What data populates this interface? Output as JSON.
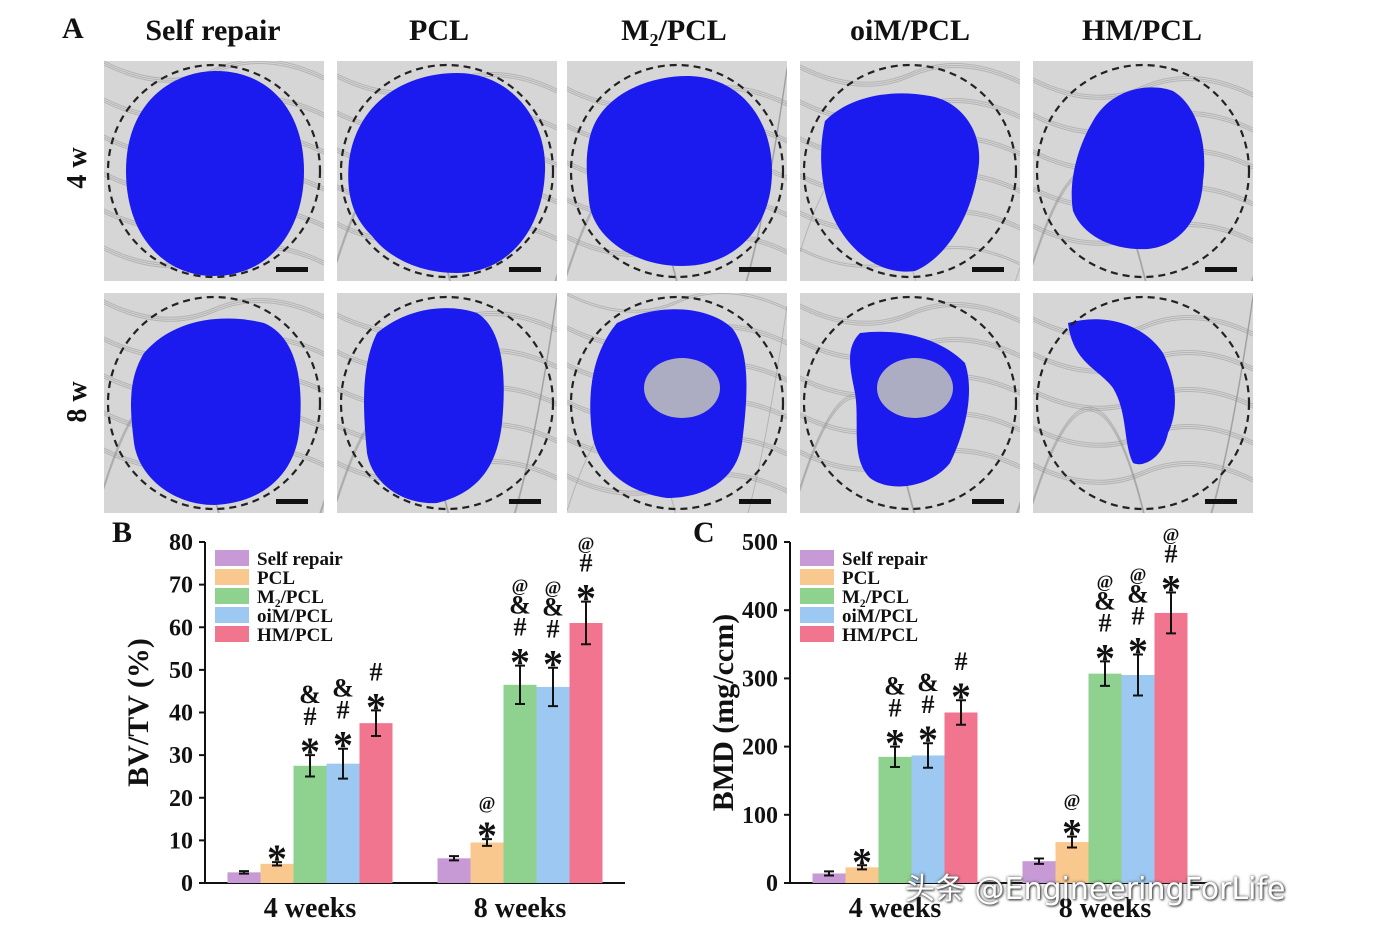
{
  "panel_a": {
    "letter": "A",
    "columns": [
      "Self repair",
      "PCL",
      "M₂/PCL",
      "oiM/PCL",
      "HM/PCL"
    ],
    "rows": [
      "4 w",
      "8 w"
    ],
    "colors": {
      "new_bone": "#1b1bf0",
      "background": "#d6d6d6"
    }
  },
  "watermark": "头条 @EngineeringForLife",
  "chart_data": [
    {
      "panel": "B",
      "type": "bar",
      "ylabel": "BV/TV (%)",
      "xlabel": "",
      "ylim": [
        0,
        80
      ],
      "yticks": [
        0,
        10,
        20,
        30,
        40,
        50,
        60,
        70,
        80
      ],
      "categories": [
        "4 weeks",
        "8 weeks"
      ],
      "legend_position": "top-left",
      "series": [
        {
          "name": "Self repair",
          "color": "#c79ad6",
          "values": [
            2.5,
            5.8
          ],
          "errors": [
            0.3,
            0.5
          ],
          "marks": [
            "",
            ""
          ]
        },
        {
          "name": "PCL",
          "color": "#f9c88f",
          "values": [
            4.5,
            9.5
          ],
          "errors": [
            0.4,
            0.8
          ],
          "marks": [
            "*",
            "*@"
          ]
        },
        {
          "name": "M₂/PCL",
          "color": "#8fd18f",
          "values": [
            27.5,
            46.5
          ],
          "errors": [
            2.5,
            4.5
          ],
          "marks": [
            "*#&",
            "*#&@"
          ]
        },
        {
          "name": "oiM/PCL",
          "color": "#9cc8f2",
          "values": [
            28,
            46
          ],
          "errors": [
            3.5,
            4.5
          ],
          "marks": [
            "*#&",
            "*#&@"
          ]
        },
        {
          "name": "HM/PCL",
          "color": "#f2758f",
          "values": [
            37.5,
            61
          ],
          "errors": [
            3,
            5
          ],
          "marks": [
            "*#",
            "*#@"
          ]
        }
      ]
    },
    {
      "panel": "C",
      "type": "bar",
      "ylabel": "BMD (mg/ccm)",
      "xlabel": "",
      "ylim": [
        0,
        500
      ],
      "yticks": [
        0,
        100,
        200,
        300,
        400,
        500
      ],
      "categories": [
        "4 weeks",
        "8 weeks"
      ],
      "legend_position": "top-left",
      "series": [
        {
          "name": "Self repair",
          "color": "#c79ad6",
          "values": [
            14,
            32
          ],
          "errors": [
            3,
            4
          ],
          "marks": [
            "",
            ""
          ]
        },
        {
          "name": "PCL",
          "color": "#f9c88f",
          "values": [
            23,
            60
          ],
          "errors": [
            3,
            8
          ],
          "marks": [
            "*",
            "*@"
          ]
        },
        {
          "name": "M₂/PCL",
          "color": "#8fd18f",
          "values": [
            185,
            307
          ],
          "errors": [
            15,
            18
          ],
          "marks": [
            "*#&",
            "*#&@"
          ]
        },
        {
          "name": "oiM/PCL",
          "color": "#9cc8f2",
          "values": [
            187,
            305
          ],
          "errors": [
            18,
            30
          ],
          "marks": [
            "*#&",
            "*#&@"
          ]
        },
        {
          "name": "HM/PCL",
          "color": "#f2758f",
          "values": [
            250,
            396
          ],
          "errors": [
            18,
            30
          ],
          "marks": [
            "*#",
            "*#@"
          ]
        }
      ]
    }
  ]
}
